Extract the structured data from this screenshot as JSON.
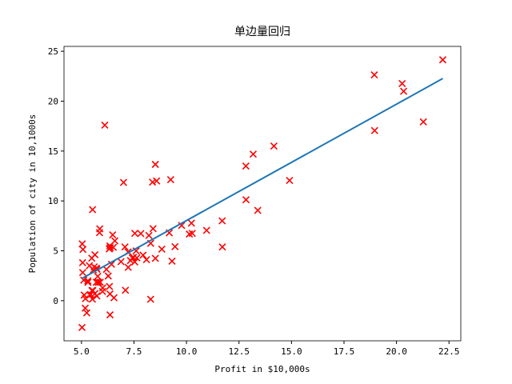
{
  "chart_data": {
    "type": "scatter",
    "title": "单边量回归",
    "x_label": "Profit in $10,000s",
    "y_label": "Population of city in 10,1000s",
    "xlim": [
      4.168,
      23.062
    ],
    "ylim": [
      -4.02,
      25.49
    ],
    "xticks": [
      {
        "value": 5,
        "label": "5.0"
      },
      7.5,
      {
        "value": 10,
        "label": "10.0"
      },
      12.5,
      {
        "value": 15,
        "label": "15.0"
      },
      17.5,
      {
        "value": 20,
        "label": "20.0"
      },
      22.5
    ],
    "yticks": [
      0,
      5,
      10,
      15,
      20,
      25
    ],
    "series": [
      {
        "type": "scatter",
        "marker": "x",
        "color": "#ff0000",
        "x": [
          6.1101,
          5.5277,
          8.5186,
          7.0032,
          5.8598,
          8.3829,
          7.4764,
          8.5781,
          6.4862,
          5.0546,
          5.7107,
          14.164,
          5.734,
          8.4084,
          5.6407,
          5.3794,
          6.3654,
          5.1301,
          6.4296,
          7.0708,
          6.1891,
          20.27,
          5.4901,
          6.3261,
          5.5649,
          18.945,
          12.828,
          10.957,
          13.176,
          22.203,
          5.2524,
          6.5894,
          9.2482,
          5.8918,
          8.2111,
          7.9334,
          8.0959,
          5.6063,
          12.836,
          6.3534,
          5.4069,
          6.8825,
          11.708,
          5.7737,
          7.8247,
          7.0931,
          5.0702,
          5.8014,
          11.7,
          5.5416,
          7.5402,
          5.3077,
          7.4239,
          7.6031,
          6.3328,
          6.3589,
          6.2742,
          5.6397,
          9.3102,
          9.4536,
          8.8254,
          5.1793,
          21.279,
          14.908,
          18.959,
          7.2182,
          8.2951,
          10.236,
          5.4994,
          20.341,
          10.136,
          7.3345,
          6.0062,
          7.2259,
          5.0269,
          6.5479,
          7.5386,
          5.0365,
          10.274,
          5.1077,
          5.7292,
          5.1884,
          6.3557,
          9.7687,
          6.5159,
          8.5172,
          9.1802,
          6.002,
          5.5204,
          5.0594,
          5.7077,
          7.6366,
          5.8707,
          5.3054,
          8.2934,
          13.394,
          5.4369
        ],
        "values": [
          17.592,
          9.1302,
          13.662,
          11.854,
          6.8233,
          11.886,
          4.3483,
          12,
          6.5987,
          3.8166,
          3.2522,
          15.505,
          3.1551,
          7.2258,
          0.71618,
          3.5129,
          5.3048,
          0.56077,
          3.6518,
          5.3893,
          3.1386,
          21.767,
          4.263,
          5.1875,
          3.0825,
          22.638,
          13.501,
          7.0467,
          14.692,
          24.147,
          -1.22,
          5.9966,
          12.134,
          1.8495,
          6.5426,
          4.5623,
          4.1164,
          3.3928,
          10.117,
          5.4974,
          0.55657,
          3.9115,
          5.3854,
          2.4406,
          6.7318,
          1.0463,
          5.1337,
          1.844,
          8.0043,
          1.0179,
          6.7504,
          1.8396,
          4.2885,
          4.9981,
          1.4233,
          -1.4211,
          2.4756,
          4.6042,
          3.9624,
          5.4141,
          5.1694,
          -0.74279,
          17.929,
          12.054,
          17.054,
          4.8852,
          5.7442,
          7.7754,
          1.0173,
          20.992,
          6.6799,
          4.0259,
          1.2784,
          3.3411,
          -2.6807,
          0.29678,
          3.8845,
          5.7014,
          6.7526,
          2.0576,
          0.47953,
          0.20421,
          0.67861,
          7.5435,
          5.3436,
          4.2415,
          6.7981,
          0.92695,
          0.152,
          2.8214,
          1.8451,
          4.2959,
          7.2029,
          1.9869,
          0.14454,
          9.0551,
          0.61705
        ]
      },
      {
        "type": "line",
        "color": "#1f77b4",
        "x": [
          5.0269,
          22.203
        ],
        "values": [
          2.233,
          22.268
        ]
      }
    ]
  }
}
